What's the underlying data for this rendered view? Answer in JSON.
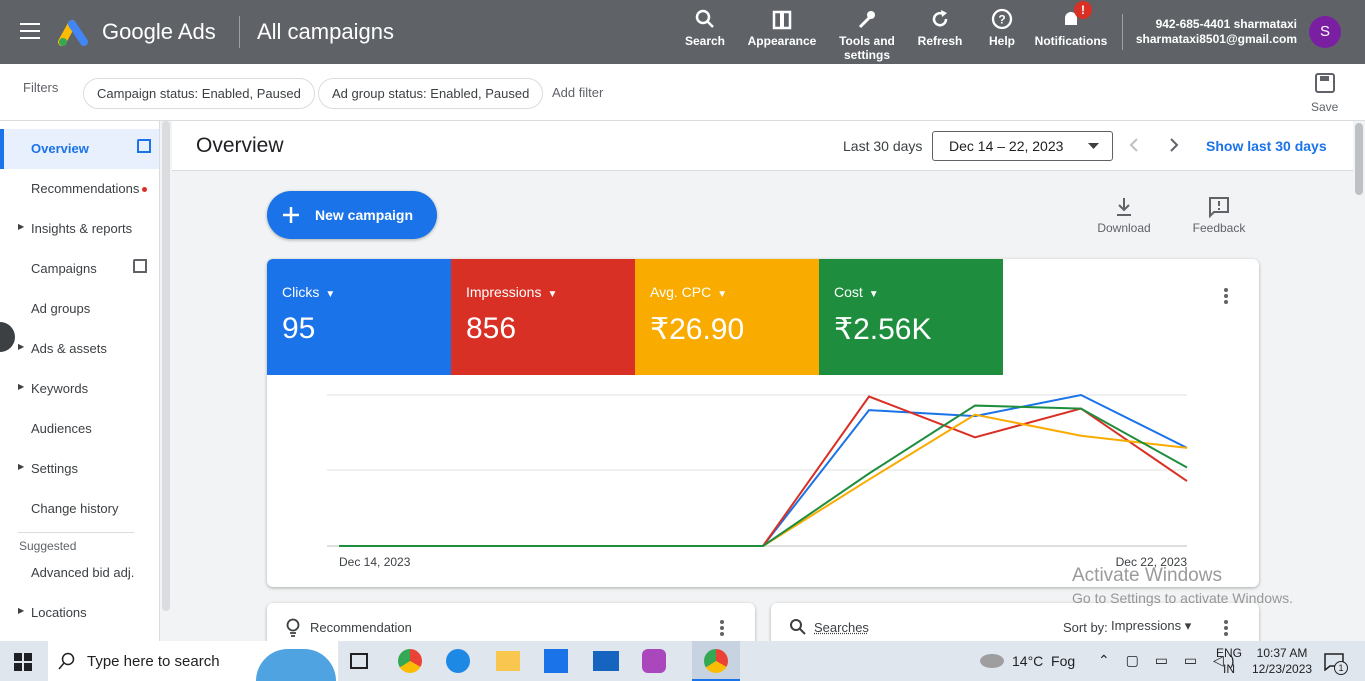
{
  "header": {
    "product": "Google Ads",
    "page": "All campaigns",
    "actions": [
      "Search",
      "Appearance",
      "Tools and settings",
      "Refresh",
      "Help",
      "Notifications"
    ],
    "notification_badge": "!",
    "account_phone": "942-685-4401 sharmataxi",
    "account_email": "sharmataxi8501@gmail.com",
    "avatar": "S"
  },
  "filters": {
    "label": "Filters",
    "chips": [
      "Campaign status: Enabled, Paused",
      "Ad group status: Enabled, Paused"
    ],
    "add": "Add filter",
    "save": "Save"
  },
  "sidebar": {
    "items": [
      "Overview",
      "Recommendations",
      "Insights & reports",
      "Campaigns",
      "Ad groups",
      "Ads & assets",
      "Keywords",
      "Audiences",
      "Settings",
      "Change history"
    ],
    "suggested_heading": "Suggested",
    "suggested": [
      "Advanced bid adj.",
      "Locations"
    ]
  },
  "overview": {
    "title": "Overview",
    "range_label": "Last 30 days",
    "date_range": "Dec 14 – 22, 2023",
    "show_last": "Show last 30 days",
    "new_campaign": "New campaign",
    "download": "Download",
    "feedback": "Feedback"
  },
  "metric_totals": [
    "95",
    "856",
    "₹26.90",
    "₹2.56K"
  ],
  "chart_data": {
    "type": "line",
    "categories": [
      "Dec 14, 2023",
      null,
      null,
      null,
      null,
      null,
      null,
      null,
      "Dec 22, 2023"
    ],
    "ylim": [
      0,
      100
    ],
    "series": [
      {
        "name": "Clicks",
        "color": "#1a73e8",
        "values": [
          0,
          0,
          0,
          0,
          0,
          90,
          86,
          100,
          65
        ]
      },
      {
        "name": "Impressions",
        "color": "#d93025",
        "values": [
          0,
          0,
          0,
          0,
          0,
          99,
          72,
          91,
          43
        ]
      },
      {
        "name": "Avg. CPC",
        "color": "#f9ab00",
        "values": [
          0,
          0,
          0,
          0,
          0,
          44,
          87,
          73,
          65
        ]
      },
      {
        "name": "Cost",
        "color": "#1e8e3e",
        "values": [
          0,
          0,
          0,
          0,
          0,
          48,
          93,
          91,
          52
        ]
      }
    ]
  },
  "cards": {
    "recommendation": "Recommendation",
    "searches": "Searches",
    "sort_by": "Sort by:",
    "sort_value": "Impressions"
  },
  "watermark": {
    "title": "Activate Windows",
    "subtitle": "Go to Settings to activate Windows."
  },
  "taskbar": {
    "search": "Type here to search",
    "weather": "14°C  Fog",
    "lang": "ENG",
    "region": "IN",
    "time": "10:37 AM",
    "date": "12/23/2023",
    "notif_count": "1"
  }
}
